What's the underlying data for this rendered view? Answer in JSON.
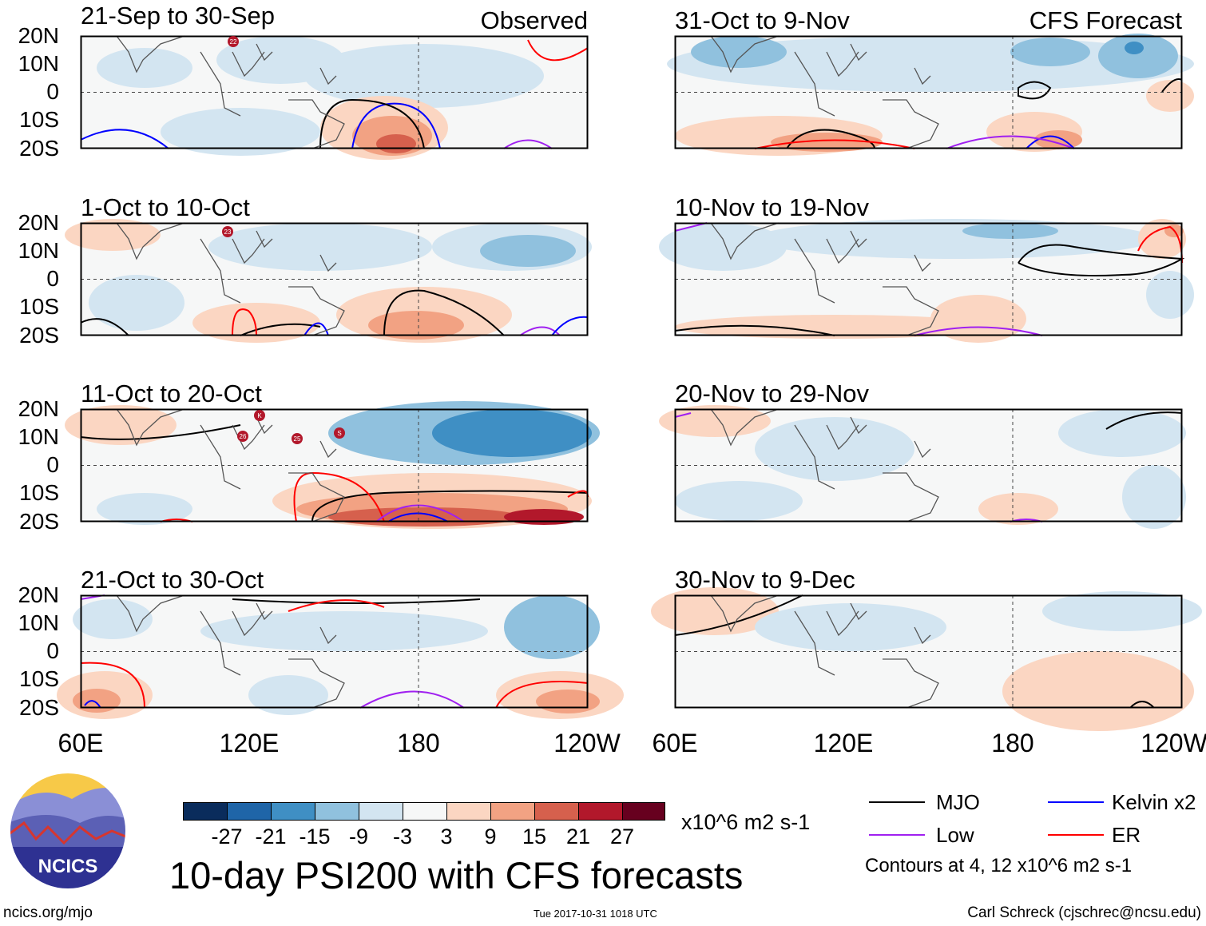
{
  "panels": [
    {
      "title": "21-Sep to 30-Sep",
      "label": "Observed"
    },
    {
      "title": "1-Oct to 10-Oct",
      "label": ""
    },
    {
      "title": "11-Oct to 20-Oct",
      "label": ""
    },
    {
      "title": "21-Oct to 30-Oct",
      "label": ""
    },
    {
      "title": "31-Oct to 9-Nov",
      "label": "CFS Forecast"
    },
    {
      "title": "10-Nov to 19-Nov",
      "label": ""
    },
    {
      "title": "20-Nov to 29-Nov",
      "label": ""
    },
    {
      "title": "30-Nov to 9-Dec",
      "label": ""
    }
  ],
  "lat_labels": [
    "20N",
    "10N",
    "0",
    "10S",
    "20S"
  ],
  "lon_labels": [
    "60E",
    "120E",
    "180",
    "120W"
  ],
  "storms": [
    {
      "panel": 0,
      "label": "22"
    },
    {
      "panel": 1,
      "label": "23"
    },
    {
      "panel": 2,
      "label": "K"
    },
    {
      "panel": 2,
      "label": "26"
    },
    {
      "panel": 2,
      "label": "25"
    },
    {
      "panel": 2,
      "label": "S"
    }
  ],
  "colorbar": {
    "colors": [
      "#0a2c5c",
      "#1f65a8",
      "#3f8fc4",
      "#90c1de",
      "#d3e5f1",
      "#f6f7f7",
      "#fbd6c2",
      "#f2a283",
      "#d6604d",
      "#b2182b",
      "#67001f"
    ],
    "labels": [
      "-27",
      "-21",
      "-15",
      "-9",
      "-3",
      "3",
      "9",
      "15",
      "21",
      "27"
    ],
    "units": "x10^6 m2 s-1"
  },
  "legend": {
    "items": [
      {
        "name": "MJO",
        "color": "#000000"
      },
      {
        "name": "Kelvin x2",
        "color": "#0000ff"
      },
      {
        "name": "Low",
        "color": "#a020f0"
      },
      {
        "name": "ER",
        "color": "#ff0000"
      }
    ],
    "contours_note": "Contours at 4, 12 x10^6 m2 s-1"
  },
  "logo_text": "NCICS",
  "main_title": "10-day PSI200 with CFS forecasts",
  "footer": {
    "left": "ncics.org/mjo",
    "center": "Tue 2017-10-31 1018 UTC",
    "right": "Carl Schreck (cjschrec@ncsu.edu)"
  }
}
